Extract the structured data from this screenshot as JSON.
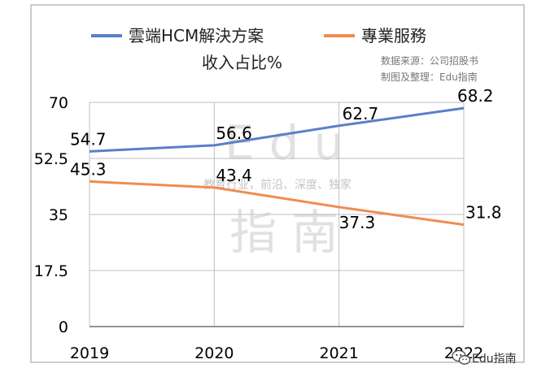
{
  "chart_data": {
    "type": "line",
    "title": "收入占比%",
    "categories": [
      "2019",
      "2020",
      "2021",
      "2022"
    ],
    "series": [
      {
        "name": "雲端HCM解決方案",
        "color": "#5b7fc7",
        "values": [
          54.7,
          56.6,
          62.7,
          68.2
        ],
        "labels": [
          "54.7",
          "56.6",
          "62.7",
          "68.2"
        ]
      },
      {
        "name": "專業服務",
        "color": "#f08c4e",
        "values": [
          45.3,
          43.4,
          37.3,
          31.8
        ],
        "labels": [
          "45.3",
          "43.4",
          "37.3",
          "31.8"
        ]
      }
    ],
    "yticks": [
      "0",
      "17.5",
      "35",
      "52.5",
      "70"
    ],
    "ylim": [
      0,
      70
    ],
    "xlabel": "",
    "ylabel": "",
    "grid": true
  },
  "source_note": "数据来源：公司招股书",
  "made_note": "制图及整理：Edu指南",
  "watermark": {
    "line1": "Edu",
    "line2": "指南",
    "tagline": "教育行业，前沿、深度、独家"
  },
  "footer": {
    "icon": "wechat-icon",
    "text": "Edu指南"
  },
  "colors": {
    "grid": "#bfbfbf",
    "axis": "#555555",
    "frame": "#999999"
  }
}
